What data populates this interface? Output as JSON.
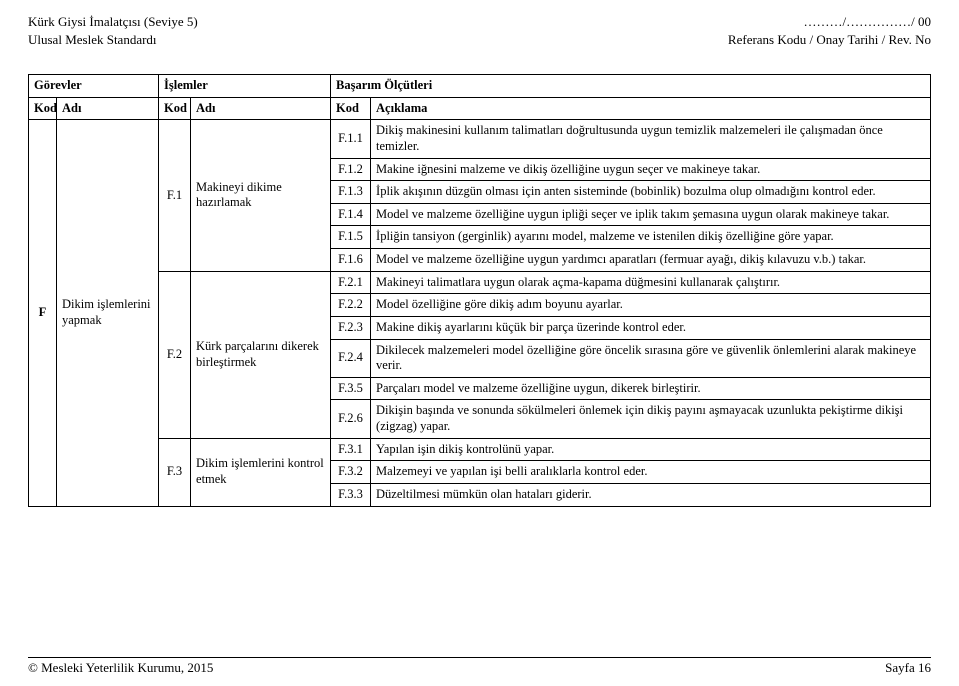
{
  "header": {
    "top_left_1": "Kürk Giysi İmalatçısı (Seviye 5)",
    "top_left_2": "Ulusal Meslek Standardı",
    "top_right_1": "………/……………/ 00",
    "top_right_2": "Referans Kodu / Onay Tarihi / Rev. No"
  },
  "section_headers": {
    "gorevler": "Görevler",
    "islemler": "İşlemler",
    "basarim": "Başarım Ölçütleri",
    "kod": "Kod",
    "adi": "Adı",
    "aciklama": "Açıklama"
  },
  "gorev": {
    "kod": "F",
    "adi": "Dikim işlemlerini yapmak"
  },
  "islemler": [
    {
      "kod": "F.1",
      "adi": "Makineyi dikime hazırlamak"
    },
    {
      "kod": "F.2",
      "adi": "Kürk parçalarını dikerek birleştirmek"
    },
    {
      "kod": "F.3",
      "adi": "Dikim işlemlerini kontrol etmek"
    }
  ],
  "olcutler": {
    "f11": {
      "kod": "F.1.1",
      "txt": "Dikiş makinesini kullanım talimatları doğrultusunda uygun temizlik malzemeleri ile çalışmadan önce temizler."
    },
    "f12": {
      "kod": "F.1.2",
      "txt": "Makine iğnesini malzeme ve dikiş özelliğine uygun  seçer ve makineye takar."
    },
    "f13": {
      "kod": "F.1.3",
      "txt": "İplik akışının düzgün olması için anten sisteminde (bobinlik) bozulma olup olmadığını kontrol eder."
    },
    "f14": {
      "kod": "F.1.4",
      "txt": "Model ve malzeme özelliğine uygun ipliği seçer ve iplik takım şemasına uygun olarak makineye takar."
    },
    "f15": {
      "kod": "F.1.5",
      "txt": "İpliğin tansiyon (gerginlik) ayarını model,  malzeme ve istenilen dikiş özelliğine göre yapar."
    },
    "f16": {
      "kod": "F.1.6",
      "txt": "Model ve malzeme özelliğine uygun yardımcı aparatları (fermuar ayağı, dikiş kılavuzu v.b.) takar."
    },
    "f21": {
      "kod": "F.2.1",
      "txt": "Makineyi talimatlara uygun olarak açma-kapama düğmesini kullanarak çalıştırır."
    },
    "f22": {
      "kod": "F.2.2",
      "txt": "Model özelliğine göre dikiş adım boyunu ayarlar."
    },
    "f23": {
      "kod": "F.2.3",
      "txt": "Makine dikiş ayarlarını küçük bir parça üzerinde kontrol eder."
    },
    "f24": {
      "kod": "F.2.4",
      "txt": "Dikilecek malzemeleri model özelliğine göre öncelik sırasına göre ve güvenlik önlemlerini alarak makineye verir."
    },
    "f35": {
      "kod": "F.3.5",
      "txt": "Parçaları model ve malzeme özelliğine uygun, dikerek birleştirir."
    },
    "f26": {
      "kod": "F.2.6",
      "txt": "Dikişin başında ve sonunda sökülmeleri önlemek için dikiş payını aşmayacak uzunlukta pekiştirme dikişi (zigzag) yapar."
    },
    "f31": {
      "kod": "F.3.1",
      "txt": "Yapılan işin dikiş kontrolünü yapar."
    },
    "f32": {
      "kod": "F.3.2",
      "txt": "Malzemeyi ve yapılan işi belli aralıklarla kontrol eder."
    },
    "f33": {
      "kod": "F.3.3",
      "txt": "Düzeltilmesi mümkün olan hataları giderir."
    }
  },
  "footer": {
    "left": "© Mesleki Yeterlilik Kurumu, 2015",
    "right": "Sayfa 16"
  }
}
